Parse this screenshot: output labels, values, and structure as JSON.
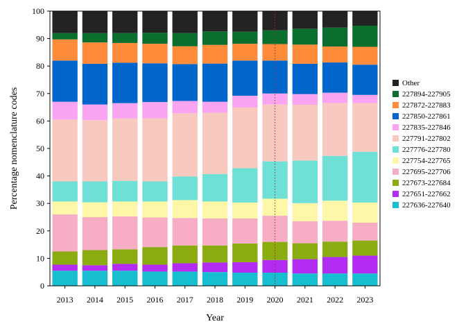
{
  "chart_data": {
    "type": "bar",
    "stacked": true,
    "xlabel": "Year",
    "ylabel": "Percentage nomenclature codes",
    "ylim": [
      0,
      100
    ],
    "yticks": [
      0,
      10,
      20,
      30,
      40,
      50,
      60,
      70,
      80,
      90,
      100
    ],
    "categories": [
      "2013",
      "2014",
      "2015",
      "2016",
      "2017",
      "2018",
      "2019",
      "2020",
      "2021",
      "2022",
      "2023"
    ],
    "vline": {
      "x": "2020",
      "color": "#b22222",
      "style": "dotted"
    },
    "legend_position": "right",
    "series": [
      {
        "name": "227636-227640",
        "color": "#17becf",
        "values": [
          5.5,
          5.5,
          5.5,
          5.2,
          5.2,
          5.0,
          4.8,
          4.8,
          4.5,
          4.5,
          4.5
        ]
      },
      {
        "name": "227651-227662",
        "color": "#b22cf2",
        "values": [
          2.2,
          2.0,
          2.5,
          2.5,
          3.0,
          3.5,
          3.8,
          4.6,
          5.2,
          6.0,
          6.5
        ]
      },
      {
        "name": "227673-227684",
        "color": "#8aac10",
        "values": [
          4.8,
          5.5,
          5.3,
          6.4,
          6.5,
          6.2,
          6.8,
          6.6,
          5.8,
          5.6,
          5.5
        ]
      },
      {
        "name": "227695-227706",
        "color": "#f7aec5",
        "values": [
          13.5,
          12.0,
          12.0,
          10.8,
          10.0,
          9.8,
          9.1,
          9.5,
          8.0,
          7.6,
          6.5
        ]
      },
      {
        "name": "227754-227765",
        "color": "#fff7a8",
        "values": [
          4.7,
          5.4,
          5.4,
          5.8,
          6.5,
          6.2,
          5.8,
          6.2,
          6.6,
          7.3,
          7.3
        ]
      },
      {
        "name": "227776-227780",
        "color": "#6ee0d5",
        "values": [
          7.3,
          7.6,
          7.5,
          7.3,
          8.6,
          10.0,
          12.5,
          13.6,
          15.5,
          16.3,
          18.5
        ]
      },
      {
        "name": "227791-227802",
        "color": "#f8c9bf",
        "values": [
          22.5,
          22.3,
          22.7,
          23.0,
          23.0,
          22.3,
          22.1,
          20.7,
          20.3,
          19.2,
          17.7
        ]
      },
      {
        "name": "227835-227846",
        "color": "#f9a5f2",
        "values": [
          6.5,
          5.7,
          5.6,
          5.9,
          4.5,
          4.0,
          4.3,
          4.0,
          3.9,
          3.8,
          3.0
        ]
      },
      {
        "name": "227850-227861",
        "color": "#0066cc",
        "values": [
          15.0,
          14.8,
          14.7,
          14.1,
          13.4,
          13.9,
          12.8,
          12.0,
          11.0,
          11.0,
          11.0
        ]
      },
      {
        "name": "227872-227883",
        "color": "#ff8c3a",
        "values": [
          7.7,
          7.8,
          7.2,
          7.1,
          6.5,
          6.8,
          6.1,
          6.0,
          7.0,
          5.8,
          6.5
        ]
      },
      {
        "name": "227894-227905",
        "color": "#0a6e2e",
        "values": [
          2.3,
          3.4,
          3.6,
          4.0,
          4.8,
          4.9,
          4.4,
          5.0,
          5.8,
          6.9,
          7.7
        ]
      },
      {
        "name": "Other",
        "color": "#232323",
        "values": [
          8.0,
          8.0,
          8.0,
          7.9,
          8.0,
          7.4,
          7.5,
          7.0,
          6.4,
          6.0,
          5.3
        ]
      }
    ]
  }
}
